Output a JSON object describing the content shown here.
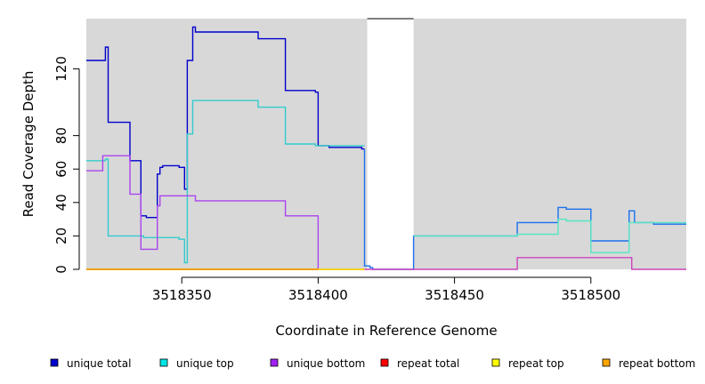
{
  "chart_data": {
    "type": "line",
    "title": "",
    "xlabel": "Coordinate in Reference Genome",
    "ylabel": "Read Coverage Depth",
    "xlim": [
      3518315,
      3518535
    ],
    "ylim": [
      0,
      150
    ],
    "xticks": [
      3518350,
      3518400,
      3518450,
      3518500
    ],
    "yticks": [
      0,
      20,
      40,
      60,
      80,
      120
    ],
    "background": "#d8d8d8",
    "gap_region": [
      3518418,
      3518435
    ],
    "legend_position": "bottom",
    "series": [
      {
        "name": "unique total",
        "color": "#0000cc",
        "points": [
          [
            3518315,
            125
          ],
          [
            3518322,
            125
          ],
          [
            3518322,
            133
          ],
          [
            3518323,
            133
          ],
          [
            3518323,
            88
          ],
          [
            3518331,
            88
          ],
          [
            3518331,
            65
          ],
          [
            3518335,
            65
          ],
          [
            3518335,
            32
          ],
          [
            3518337,
            32
          ],
          [
            3518337,
            31
          ],
          [
            3518341,
            31
          ],
          [
            3518341,
            57
          ],
          [
            3518342,
            57
          ],
          [
            3518342,
            61
          ],
          [
            3518343,
            61
          ],
          [
            3518343,
            62
          ],
          [
            3518349,
            62
          ],
          [
            3518349,
            61
          ],
          [
            3518351,
            61
          ],
          [
            3518351,
            48
          ],
          [
            3518352,
            48
          ],
          [
            3518352,
            125
          ],
          [
            3518354,
            125
          ],
          [
            3518354,
            145
          ],
          [
            3518355,
            145
          ],
          [
            3518355,
            142
          ],
          [
            3518378,
            142
          ],
          [
            3518378,
            138
          ],
          [
            3518388,
            138
          ],
          [
            3518388,
            107
          ],
          [
            3518399,
            107
          ],
          [
            3518399,
            106
          ],
          [
            3518400,
            106
          ],
          [
            3518400,
            74
          ],
          [
            3518404,
            74
          ],
          [
            3518404,
            73
          ],
          [
            3518416,
            73
          ],
          [
            3518416,
            72
          ],
          [
            3518417,
            72
          ]
        ]
      },
      {
        "name": "unique top",
        "color": "#33cccc",
        "points": [
          [
            3518315,
            65
          ],
          [
            3518322,
            65
          ],
          [
            3518322,
            66
          ],
          [
            3518323,
            66
          ],
          [
            3518323,
            20
          ],
          [
            3518336,
            20
          ],
          [
            3518336,
            19
          ],
          [
            3518349,
            19
          ],
          [
            3518349,
            18
          ],
          [
            3518351,
            18
          ],
          [
            3518351,
            4
          ],
          [
            3518352,
            4
          ],
          [
            3518352,
            81
          ],
          [
            3518354,
            81
          ],
          [
            3518354,
            101
          ],
          [
            3518378,
            101
          ],
          [
            3518378,
            97
          ],
          [
            3518388,
            97
          ],
          [
            3518388,
            75
          ],
          [
            3518399,
            75
          ],
          [
            3518399,
            74
          ],
          [
            3518417,
            74
          ]
        ]
      },
      {
        "name": "unique bottom",
        "color": "#aa44ee",
        "points": [
          [
            3518315,
            59
          ],
          [
            3518321,
            59
          ],
          [
            3518321,
            68
          ],
          [
            3518331,
            68
          ],
          [
            3518331,
            45
          ],
          [
            3518335,
            45
          ],
          [
            3518335,
            12
          ],
          [
            3518341,
            12
          ],
          [
            3518341,
            38
          ],
          [
            3518342,
            38
          ],
          [
            3518342,
            44
          ],
          [
            3518355,
            44
          ],
          [
            3518355,
            41
          ],
          [
            3518388,
            41
          ],
          [
            3518388,
            32
          ],
          [
            3518400,
            32
          ],
          [
            3518400,
            0
          ],
          [
            3518417,
            0
          ]
        ]
      },
      {
        "name": "repeat total",
        "color": "#dd0000",
        "points": [
          [
            3518315,
            0
          ],
          [
            3518417,
            0
          ]
        ]
      },
      {
        "name": "repeat top",
        "color": "#ffff00",
        "points": [
          [
            3518315,
            0
          ],
          [
            3518417,
            0
          ]
        ]
      },
      {
        "name": "repeat bottom",
        "color": "#ee9900",
        "points": [
          [
            3518315,
            0
          ],
          [
            3518400,
            0
          ]
        ]
      },
      {
        "name": "",
        "color": "#1a6fee",
        "points": [
          [
            3518417,
            72
          ],
          [
            3518417,
            2
          ],
          [
            3518419,
            2
          ],
          [
            3518419,
            1
          ],
          [
            3518420,
            1
          ],
          [
            3518420,
            0
          ],
          [
            3518435,
            0
          ],
          [
            3518435,
            20
          ],
          [
            3518473,
            20
          ],
          [
            3518473,
            28
          ],
          [
            3518488,
            28
          ],
          [
            3518488,
            37
          ],
          [
            3518491,
            37
          ],
          [
            3518491,
            36
          ],
          [
            3518500,
            36
          ],
          [
            3518500,
            17
          ],
          [
            3518514,
            17
          ],
          [
            3518514,
            35
          ],
          [
            3518516,
            35
          ],
          [
            3518516,
            28
          ],
          [
            3518523,
            28
          ],
          [
            3518523,
            27
          ],
          [
            3518535,
            27
          ]
        ]
      },
      {
        "name": "",
        "color": "#55e5c5",
        "points": [
          [
            3518435,
            20
          ],
          [
            3518473,
            20
          ],
          [
            3518473,
            21
          ],
          [
            3518488,
            21
          ],
          [
            3518488,
            30
          ],
          [
            3518491,
            30
          ],
          [
            3518491,
            29
          ],
          [
            3518500,
            29
          ],
          [
            3518500,
            10
          ],
          [
            3518514,
            10
          ],
          [
            3518514,
            28
          ],
          [
            3518535,
            28
          ]
        ]
      },
      {
        "name": "",
        "color": "#cc44bb",
        "points": [
          [
            3518417,
            0
          ],
          [
            3518420,
            0
          ],
          [
            3518435,
            0
          ],
          [
            3518473,
            0
          ],
          [
            3518473,
            7
          ],
          [
            3518515,
            7
          ],
          [
            3518515,
            0
          ],
          [
            3518535,
            0
          ]
        ]
      }
    ]
  },
  "legend": [
    {
      "label": "unique total",
      "color": "#0000cc"
    },
    {
      "label": "unique top",
      "color": "#00e5e5"
    },
    {
      "label": "unique bottom",
      "color": "#a020f0"
    },
    {
      "label": "repeat total",
      "color": "#ff0000"
    },
    {
      "label": "repeat top",
      "color": "#ffff00"
    },
    {
      "label": "repeat bottom",
      "color": "#ffa500"
    }
  ]
}
